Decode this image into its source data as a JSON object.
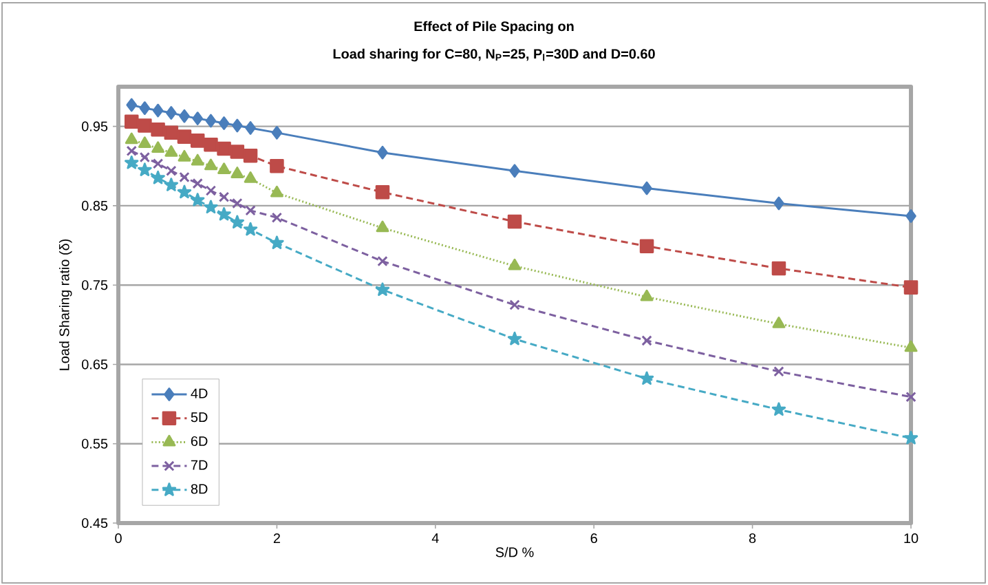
{
  "chart_data": {
    "type": "line",
    "title": "Effect of Pile Spacing on",
    "subtitle": "Load sharing for C=80, N$_{P}$=25, P$_{l}$=30D and D=0.60",
    "xlabel": "S/D %",
    "ylabel": "Load Sharing ratio (δ)",
    "x": [
      0.167,
      0.333,
      0.5,
      0.667,
      0.833,
      1.0,
      1.167,
      1.333,
      1.5,
      1.667,
      2.0,
      3.333,
      5.0,
      6.667,
      8.333,
      10.0
    ],
    "xlim": [
      0,
      10
    ],
    "xticks": [
      0,
      2,
      4,
      6,
      8,
      10
    ],
    "ylim": [
      0.45,
      1.0
    ],
    "yticks": [
      0.45,
      0.55,
      0.65,
      0.75,
      0.85,
      0.95
    ],
    "grid": "y",
    "legend": "bottom left",
    "series": [
      {
        "name": "4D",
        "color": "#4a7ebb",
        "marker": "diamond",
        "line_style": "solid",
        "values": [
          0.977,
          0.973,
          0.97,
          0.967,
          0.963,
          0.96,
          0.957,
          0.954,
          0.951,
          0.948,
          0.942,
          0.917,
          0.894,
          0.872,
          0.853,
          0.837
        ]
      },
      {
        "name": "5D",
        "color": "#be4b48",
        "marker": "square",
        "line_style": "dashed",
        "values": [
          0.956,
          0.951,
          0.946,
          0.942,
          0.937,
          0.932,
          0.927,
          0.922,
          0.918,
          0.913,
          0.9,
          0.867,
          0.83,
          0.799,
          0.771,
          0.747
        ]
      },
      {
        "name": "6D",
        "color": "#98b954",
        "marker": "triangle",
        "line_style": "dotted",
        "values": [
          0.933,
          0.928,
          0.922,
          0.917,
          0.911,
          0.906,
          0.9,
          0.895,
          0.89,
          0.884,
          0.866,
          0.822,
          0.774,
          0.735,
          0.701,
          0.671
        ]
      },
      {
        "name": "7D",
        "color": "#7d60a0",
        "marker": "cross",
        "line_style": "dashed",
        "values": [
          0.919,
          0.911,
          0.903,
          0.894,
          0.886,
          0.878,
          0.869,
          0.861,
          0.853,
          0.844,
          0.835,
          0.78,
          0.725,
          0.68,
          0.641,
          0.609
        ]
      },
      {
        "name": "8D",
        "color": "#46aac5",
        "marker": "star",
        "line_style": "dashed",
        "values": [
          0.904,
          0.895,
          0.885,
          0.876,
          0.867,
          0.857,
          0.848,
          0.839,
          0.829,
          0.82,
          0.803,
          0.744,
          0.682,
          0.632,
          0.593,
          0.557
        ]
      }
    ]
  }
}
